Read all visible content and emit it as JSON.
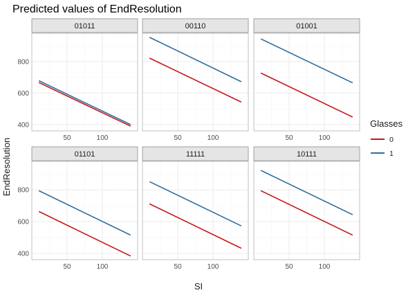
{
  "chart_data": {
    "type": "line",
    "title": "Predicted values of EndResolution",
    "xlabel": "SI",
    "ylabel": "EndResolution",
    "xlim": [
      0,
      150
    ],
    "ylim": [
      360,
      980
    ],
    "x_ticks": [
      50,
      100
    ],
    "y_ticks": [
      400,
      600,
      800
    ],
    "legend": {
      "title": "Glasses",
      "position": "right",
      "entries": [
        {
          "name": "0",
          "color": "#c4161c"
        },
        {
          "name": "1",
          "color": "#2c6e9f"
        }
      ]
    },
    "grid": true,
    "facets": [
      {
        "label": "01011",
        "series": [
          {
            "name": "0",
            "x": [
              10,
              140
            ],
            "y": [
              667,
              390
            ]
          },
          {
            "name": "1",
            "x": [
              10,
              140
            ],
            "y": [
              679,
              400
            ]
          }
        ]
      },
      {
        "label": "00110",
        "series": [
          {
            "name": "0",
            "x": [
              10,
              140
            ],
            "y": [
              822,
              543
            ]
          },
          {
            "name": "1",
            "x": [
              10,
              140
            ],
            "y": [
              954,
              672
            ]
          }
        ]
      },
      {
        "label": "01001",
        "series": [
          {
            "name": "0",
            "x": [
              10,
              140
            ],
            "y": [
              727,
              448
            ]
          },
          {
            "name": "1",
            "x": [
              10,
              140
            ],
            "y": [
              944,
              665
            ]
          }
        ]
      },
      {
        "label": "01101",
        "series": [
          {
            "name": "0",
            "x": [
              10,
              140
            ],
            "y": [
              664,
              383
            ]
          },
          {
            "name": "1",
            "x": [
              10,
              140
            ],
            "y": [
              795,
              515
            ]
          }
        ]
      },
      {
        "label": "11111",
        "series": [
          {
            "name": "0",
            "x": [
              10,
              140
            ],
            "y": [
              712,
              432
            ]
          },
          {
            "name": "1",
            "x": [
              10,
              140
            ],
            "y": [
              852,
              573
            ]
          }
        ]
      },
      {
        "label": "10111",
        "series": [
          {
            "name": "0",
            "x": [
              10,
              140
            ],
            "y": [
              795,
              515
            ]
          },
          {
            "name": "1",
            "x": [
              10,
              140
            ],
            "y": [
              923,
              644
            ]
          }
        ]
      }
    ]
  }
}
